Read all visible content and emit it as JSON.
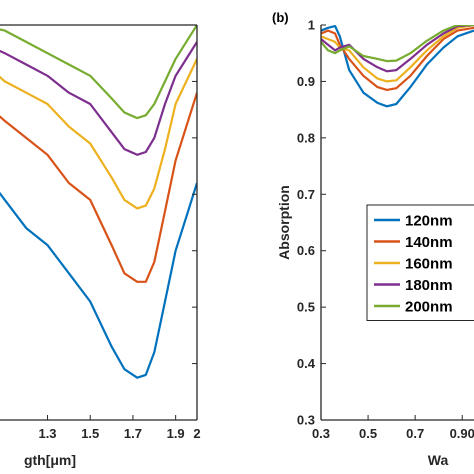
{
  "chart_data": [
    {
      "type": "line",
      "panel": "a",
      "xlabel_visible": "gth[μm]",
      "x_ticks": [
        "1.3",
        "1.5",
        "1.7",
        "1.9",
        "2"
      ],
      "x_tick_values": [
        1.3,
        1.5,
        1.7,
        1.9,
        2.0
      ],
      "xlim": [
        1.04,
        2.0
      ],
      "ylim": [
        0.3,
        1.0
      ],
      "series": [
        {
          "color": "#0072BD",
          "x": [
            1.04,
            1.1,
            1.2,
            1.3,
            1.4,
            1.5,
            1.6,
            1.66,
            1.72,
            1.76,
            1.8,
            1.85,
            1.9,
            1.95,
            2.0
          ],
          "y": [
            0.72,
            0.69,
            0.64,
            0.61,
            0.56,
            0.51,
            0.43,
            0.39,
            0.375,
            0.38,
            0.42,
            0.51,
            0.6,
            0.66,
            0.72
          ]
        },
        {
          "color": "#D95319",
          "x": [
            1.04,
            1.1,
            1.2,
            1.3,
            1.4,
            1.5,
            1.6,
            1.66,
            1.72,
            1.76,
            1.8,
            1.85,
            1.9,
            1.95,
            2.0
          ],
          "y": [
            0.85,
            0.83,
            0.8,
            0.77,
            0.72,
            0.69,
            0.61,
            0.56,
            0.545,
            0.545,
            0.58,
            0.67,
            0.76,
            0.82,
            0.88
          ]
        },
        {
          "color": "#EDB120",
          "x": [
            1.04,
            1.1,
            1.2,
            1.3,
            1.4,
            1.5,
            1.6,
            1.66,
            1.72,
            1.76,
            1.8,
            1.85,
            1.9,
            1.95,
            2.0
          ],
          "y": [
            0.92,
            0.9,
            0.88,
            0.86,
            0.82,
            0.79,
            0.73,
            0.69,
            0.675,
            0.68,
            0.71,
            0.78,
            0.86,
            0.9,
            0.94
          ]
        },
        {
          "color": "#7E2F8E",
          "x": [
            1.04,
            1.1,
            1.2,
            1.3,
            1.4,
            1.5,
            1.6,
            1.66,
            1.72,
            1.76,
            1.8,
            1.85,
            1.9,
            1.95,
            2.0
          ],
          "y": [
            0.96,
            0.95,
            0.93,
            0.91,
            0.88,
            0.86,
            0.81,
            0.78,
            0.77,
            0.775,
            0.8,
            0.86,
            0.91,
            0.94,
            0.97
          ]
        },
        {
          "color": "#77AC30",
          "x": [
            1.04,
            1.1,
            1.2,
            1.3,
            1.4,
            1.5,
            1.6,
            1.66,
            1.72,
            1.76,
            1.8,
            1.85,
            1.9,
            1.95,
            2.0
          ],
          "y": [
            0.995,
            0.99,
            0.97,
            0.95,
            0.93,
            0.91,
            0.87,
            0.845,
            0.835,
            0.84,
            0.86,
            0.9,
            0.94,
            0.97,
            1.0
          ]
        }
      ]
    },
    {
      "type": "line",
      "panel": "b",
      "panel_tag": "(b)",
      "ylabel": "Absorption",
      "xlabel_visible": "Wa",
      "x_ticks": [
        "0.3",
        "0.5",
        "0.7",
        "0.90"
      ],
      "x_tick_values": [
        0.3,
        0.5,
        0.7,
        0.9
      ],
      "y_ticks": [
        "0.3",
        "0.4",
        "0.5",
        "0.6",
        "0.7",
        "0.8",
        "0.9",
        "1"
      ],
      "y_tick_values": [
        0.3,
        0.4,
        0.5,
        0.6,
        0.7,
        0.8,
        0.9,
        1.0
      ],
      "xlim": [
        0.3,
        0.95
      ],
      "ylim": [
        0.3,
        1.0
      ],
      "legend_position": "center-right",
      "series": [
        {
          "name": "120nm",
          "color": "#0072BD",
          "x": [
            0.3,
            0.33,
            0.36,
            0.38,
            0.42,
            0.48,
            0.54,
            0.58,
            0.62,
            0.68,
            0.75,
            0.82,
            0.88,
            0.95
          ],
          "y": [
            0.99,
            0.995,
            0.998,
            0.98,
            0.92,
            0.88,
            0.862,
            0.856,
            0.86,
            0.89,
            0.93,
            0.96,
            0.98,
            0.99
          ]
        },
        {
          "name": "140nm",
          "color": "#D95319",
          "x": [
            0.3,
            0.33,
            0.36,
            0.38,
            0.42,
            0.48,
            0.54,
            0.58,
            0.62,
            0.68,
            0.75,
            0.82,
            0.88,
            0.95
          ],
          "y": [
            0.985,
            0.99,
            0.985,
            0.965,
            0.94,
            0.91,
            0.89,
            0.885,
            0.888,
            0.91,
            0.945,
            0.975,
            0.99,
            0.995
          ]
        },
        {
          "name": "160nm",
          "color": "#EDB120",
          "x": [
            0.3,
            0.33,
            0.36,
            0.38,
            0.42,
            0.48,
            0.54,
            0.58,
            0.62,
            0.68,
            0.75,
            0.82,
            0.88,
            0.95
          ],
          "y": [
            0.98,
            0.975,
            0.97,
            0.96,
            0.955,
            0.925,
            0.905,
            0.9,
            0.902,
            0.925,
            0.955,
            0.98,
            0.995,
            1.0
          ]
        },
        {
          "name": "180nm",
          "color": "#7E2F8E",
          "x": [
            0.3,
            0.33,
            0.36,
            0.38,
            0.42,
            0.48,
            0.54,
            0.58,
            0.62,
            0.68,
            0.75,
            0.82,
            0.88,
            0.95
          ],
          "y": [
            0.975,
            0.965,
            0.955,
            0.96,
            0.965,
            0.94,
            0.925,
            0.918,
            0.92,
            0.94,
            0.965,
            0.985,
            0.998,
            1.0
          ]
        },
        {
          "name": "200nm",
          "color": "#77AC30",
          "x": [
            0.3,
            0.33,
            0.36,
            0.38,
            0.42,
            0.48,
            0.54,
            0.58,
            0.62,
            0.68,
            0.75,
            0.82,
            0.88,
            0.95
          ],
          "y": [
            0.97,
            0.955,
            0.95,
            0.955,
            0.962,
            0.945,
            0.94,
            0.936,
            0.937,
            0.95,
            0.972,
            0.99,
            1.0,
            1.0
          ]
        }
      ]
    }
  ]
}
